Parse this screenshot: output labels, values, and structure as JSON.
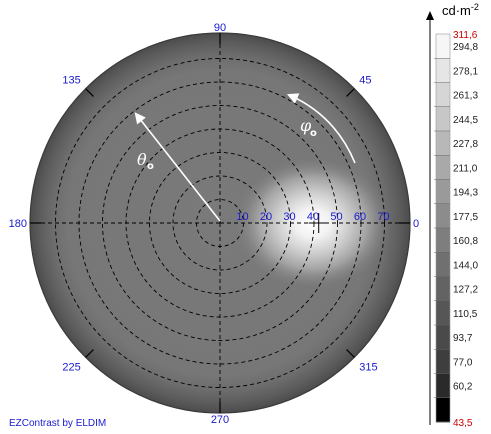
{
  "chart_data": {
    "type": "heatmap",
    "projection": "polar",
    "angular_labels": [
      {
        "angle": 90,
        "text": "90"
      },
      {
        "angle": 45,
        "text": "45"
      },
      {
        "angle": 135,
        "text": "135"
      },
      {
        "angle": 180,
        "text": "180"
      },
      {
        "angle": 225,
        "text": "225"
      },
      {
        "angle": 270,
        "text": "270"
      },
      {
        "angle": 315,
        "text": "315"
      },
      {
        "angle": 0,
        "text": "0"
      }
    ],
    "radial_labels": [
      "10",
      "20",
      "30",
      "40",
      "50",
      "60",
      "70"
    ],
    "radial_max": 80,
    "theta_symbol": "θ",
    "phi_symbol": "φ",
    "symbol_subscript": "o",
    "colorbar": {
      "unit": "cd·m",
      "unit_exp": "-2",
      "max": "311,6",
      "min": "43,5",
      "ticks": [
        "294,8",
        "278,1",
        "261,3",
        "244,5",
        "227,8",
        "211,0",
        "194,3",
        "177,5",
        "160,8",
        "144,0",
        "127,2",
        "110,5",
        "93,7",
        "77,0",
        "60,2"
      ],
      "scale_colors": [
        "#f6f6f6",
        "#e6e6e6",
        "#d6d6d6",
        "#c7c7c7",
        "#b8b8b8",
        "#a9a9a9",
        "#9a9a9a",
        "#8c8c8c",
        "#7e7e7e",
        "#707070",
        "#636363",
        "#565656",
        "#4a4a4a",
        "#3e3e3e",
        "#2a2a2a",
        "#000000"
      ]
    },
    "hotspot": {
      "phi": 0,
      "theta": 42,
      "value": 311.6
    },
    "base_value": 127.2,
    "grid": true,
    "credit": "EZContrast by ELDIM"
  }
}
